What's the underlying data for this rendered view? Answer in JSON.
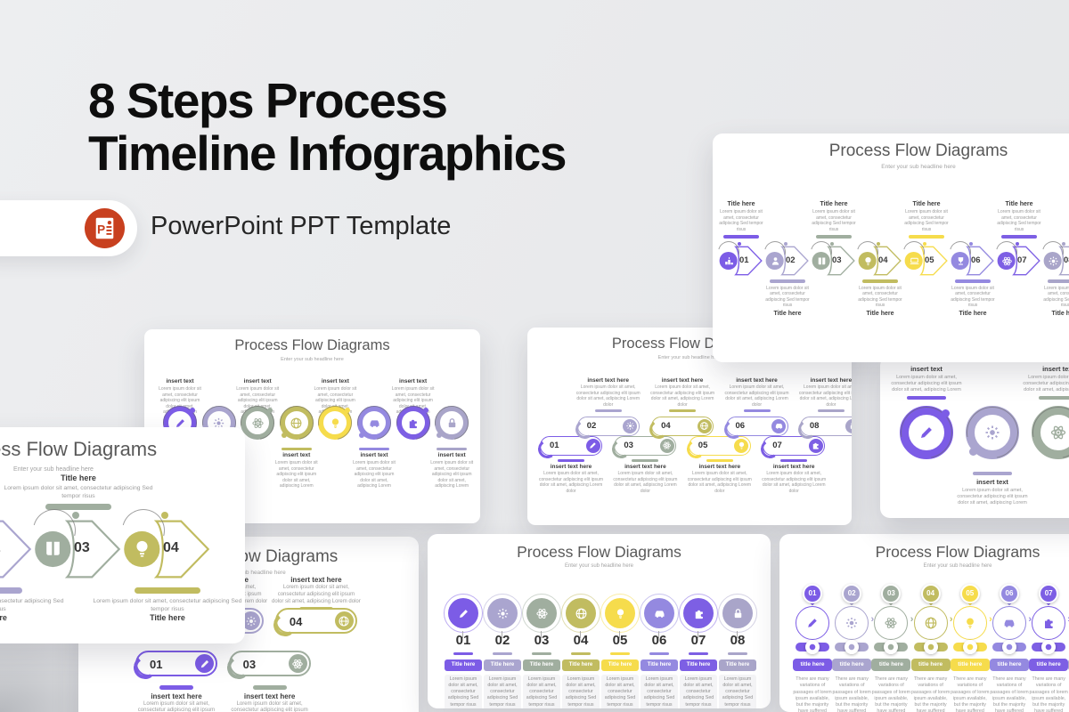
{
  "page": {
    "title_line1": "8 Steps Process",
    "title_line2": "Timeline Infographics",
    "badge": {
      "label": "PowerPoint PPT Template",
      "icon": "powerpoint-icon",
      "icon_letter": "P"
    }
  },
  "slide_title": "Process Flow Diagrams",
  "slide_subtitle": "Enter your sub headline here",
  "texts": {
    "title_here": "Title here",
    "title_here_lc": "title here",
    "insert_text": "insert text",
    "insert_text_here": "insert text here",
    "lorem_short": "Lorem ipsum dolor sit amet, consectetur adipiscing Sed tempor risus",
    "lorem_medium": "Lorem ipsum dolor sit amet, consectetur adipiscing elit ipsum dolor sit amet, adipiscing Lorem",
    "lorem_long": "Lorem ipsum dolor sit amet, consectetur adipiscing elit ipsum dolor sit amet, adipiscing Lorem dolor",
    "lorem_variation": "There are many variations of passages of lorem ipsum available, but the majority have suffered alteration"
  },
  "palette": {
    "step_colors": [
      "#7c5ce6",
      "#aaa5cf",
      "#a0ae9f",
      "#c1bc60",
      "#f6dc4c",
      "#9489e0",
      "#7d5fe4",
      "#a9a5c9"
    ],
    "powerpoint_orange": "#c8401f",
    "background": "#e9eaec",
    "card_background": "#ffffff",
    "heading_text": "#0e0e0e",
    "slide_title_text": "#595959",
    "muted_text": "#9b9b9b"
  },
  "slides": {
    "arrow_full": {
      "steps": [
        {
          "num": "01",
          "icon": "podium-icon",
          "color": "#7c5ce6"
        },
        {
          "num": "02",
          "icon": "person-icon",
          "color": "#aaa5cf"
        },
        {
          "num": "03",
          "icon": "book-icon",
          "color": "#a0ae9f"
        },
        {
          "num": "04",
          "icon": "bulb-icon",
          "color": "#c1bc60"
        },
        {
          "num": "05",
          "icon": "laptop-icon",
          "color": "#f6dc4c"
        },
        {
          "num": "06",
          "icon": "trophy-icon",
          "color": "#9489e0"
        },
        {
          "num": "07",
          "icon": "atom-icon",
          "color": "#7d5fe4"
        },
        {
          "num": "08",
          "icon": "gear-icon",
          "color": "#a9a5c9"
        }
      ]
    },
    "arrow_zoom": {
      "steps": [
        {
          "num": "02",
          "icon": "person-icon",
          "color": "#aaa5cf"
        },
        {
          "num": "03",
          "icon": "book-icon",
          "color": "#a0ae9f"
        },
        {
          "num": "04",
          "icon": "bulb-icon",
          "color": "#c1bc60"
        }
      ]
    },
    "chain_full": {
      "steps": [
        {
          "icon": "pencil-icon",
          "color": "#7c5ce6"
        },
        {
          "icon": "gear-icon",
          "color": "#aaa5cf"
        },
        {
          "icon": "atom-icon",
          "color": "#a0ae9f"
        },
        {
          "icon": "globe-icon",
          "color": "#c1bc60"
        },
        {
          "icon": "bulb-icon",
          "color": "#f6dc4c"
        },
        {
          "icon": "car-icon",
          "color": "#9489e0"
        },
        {
          "icon": "puzzle-icon",
          "color": "#7d5fe4"
        },
        {
          "icon": "lock-icon",
          "color": "#a9a5c9"
        }
      ]
    },
    "chain_zoom": {
      "steps": [
        {
          "icon": "pencil-icon",
          "color": "#7c5ce6"
        },
        {
          "icon": "gear-icon",
          "color": "#aaa5cf"
        },
        {
          "icon": "atom-icon",
          "color": "#a0ae9f"
        }
      ]
    },
    "pill_full": {
      "steps": [
        {
          "num": "01",
          "icon": "pencil-icon",
          "color": "#7c5ce6"
        },
        {
          "num": "02",
          "icon": "gear-icon",
          "color": "#aaa5cf"
        },
        {
          "num": "03",
          "icon": "atom-icon",
          "color": "#a0ae9f"
        },
        {
          "num": "04",
          "icon": "globe-icon",
          "color": "#c1bc60"
        },
        {
          "num": "05",
          "icon": "bulb-icon",
          "color": "#f6dc4c"
        },
        {
          "num": "06",
          "icon": "car-icon",
          "color": "#9489e0"
        },
        {
          "num": "07",
          "icon": "puzzle-icon",
          "color": "#7d5fe4"
        },
        {
          "num": "08",
          "icon": "lock-icon",
          "color": "#a9a5c9"
        }
      ]
    },
    "pill_zoom": {
      "steps": [
        {
          "num": "01",
          "icon": "pencil-icon",
          "color": "#7c5ce6"
        },
        {
          "num": "02",
          "icon": "gear-icon",
          "color": "#aaa5cf"
        },
        {
          "num": "03",
          "icon": "atom-icon",
          "color": "#a0ae9f"
        },
        {
          "num": "04",
          "icon": "globe-icon",
          "color": "#c1bc60"
        }
      ]
    },
    "circle_full": {
      "steps": [
        {
          "num": "01",
          "icon": "pencil-icon",
          "color": "#7c5ce6"
        },
        {
          "num": "02",
          "icon": "gear-icon",
          "color": "#aaa5cf"
        },
        {
          "num": "03",
          "icon": "atom-icon",
          "color": "#a0ae9f"
        },
        {
          "num": "04",
          "icon": "globe-icon",
          "color": "#c1bc60"
        },
        {
          "num": "05",
          "icon": "bulb-icon",
          "color": "#f6dc4c"
        },
        {
          "num": "06",
          "icon": "car-icon",
          "color": "#9489e0"
        },
        {
          "num": "07",
          "icon": "puzzle-icon",
          "color": "#7d5fe4"
        },
        {
          "num": "08",
          "icon": "lock-icon",
          "color": "#a9a5c9"
        }
      ]
    },
    "balloon_full": {
      "steps": [
        {
          "num": "01",
          "icon": "pencil-icon",
          "color": "#7c5ce6"
        },
        {
          "num": "02",
          "icon": "gear-icon",
          "color": "#aaa5cf"
        },
        {
          "num": "03",
          "icon": "atom-icon",
          "color": "#a0ae9f"
        },
        {
          "num": "04",
          "icon": "globe-icon",
          "color": "#c1bc60"
        },
        {
          "num": "05",
          "icon": "bulb-icon",
          "color": "#f6dc4c"
        },
        {
          "num": "06",
          "icon": "car-icon",
          "color": "#9489e0"
        },
        {
          "num": "07",
          "icon": "puzzle-icon",
          "color": "#7d5fe4"
        },
        {
          "num": "08",
          "icon": "lock-icon",
          "color": "#a9a5c9"
        }
      ]
    }
  }
}
